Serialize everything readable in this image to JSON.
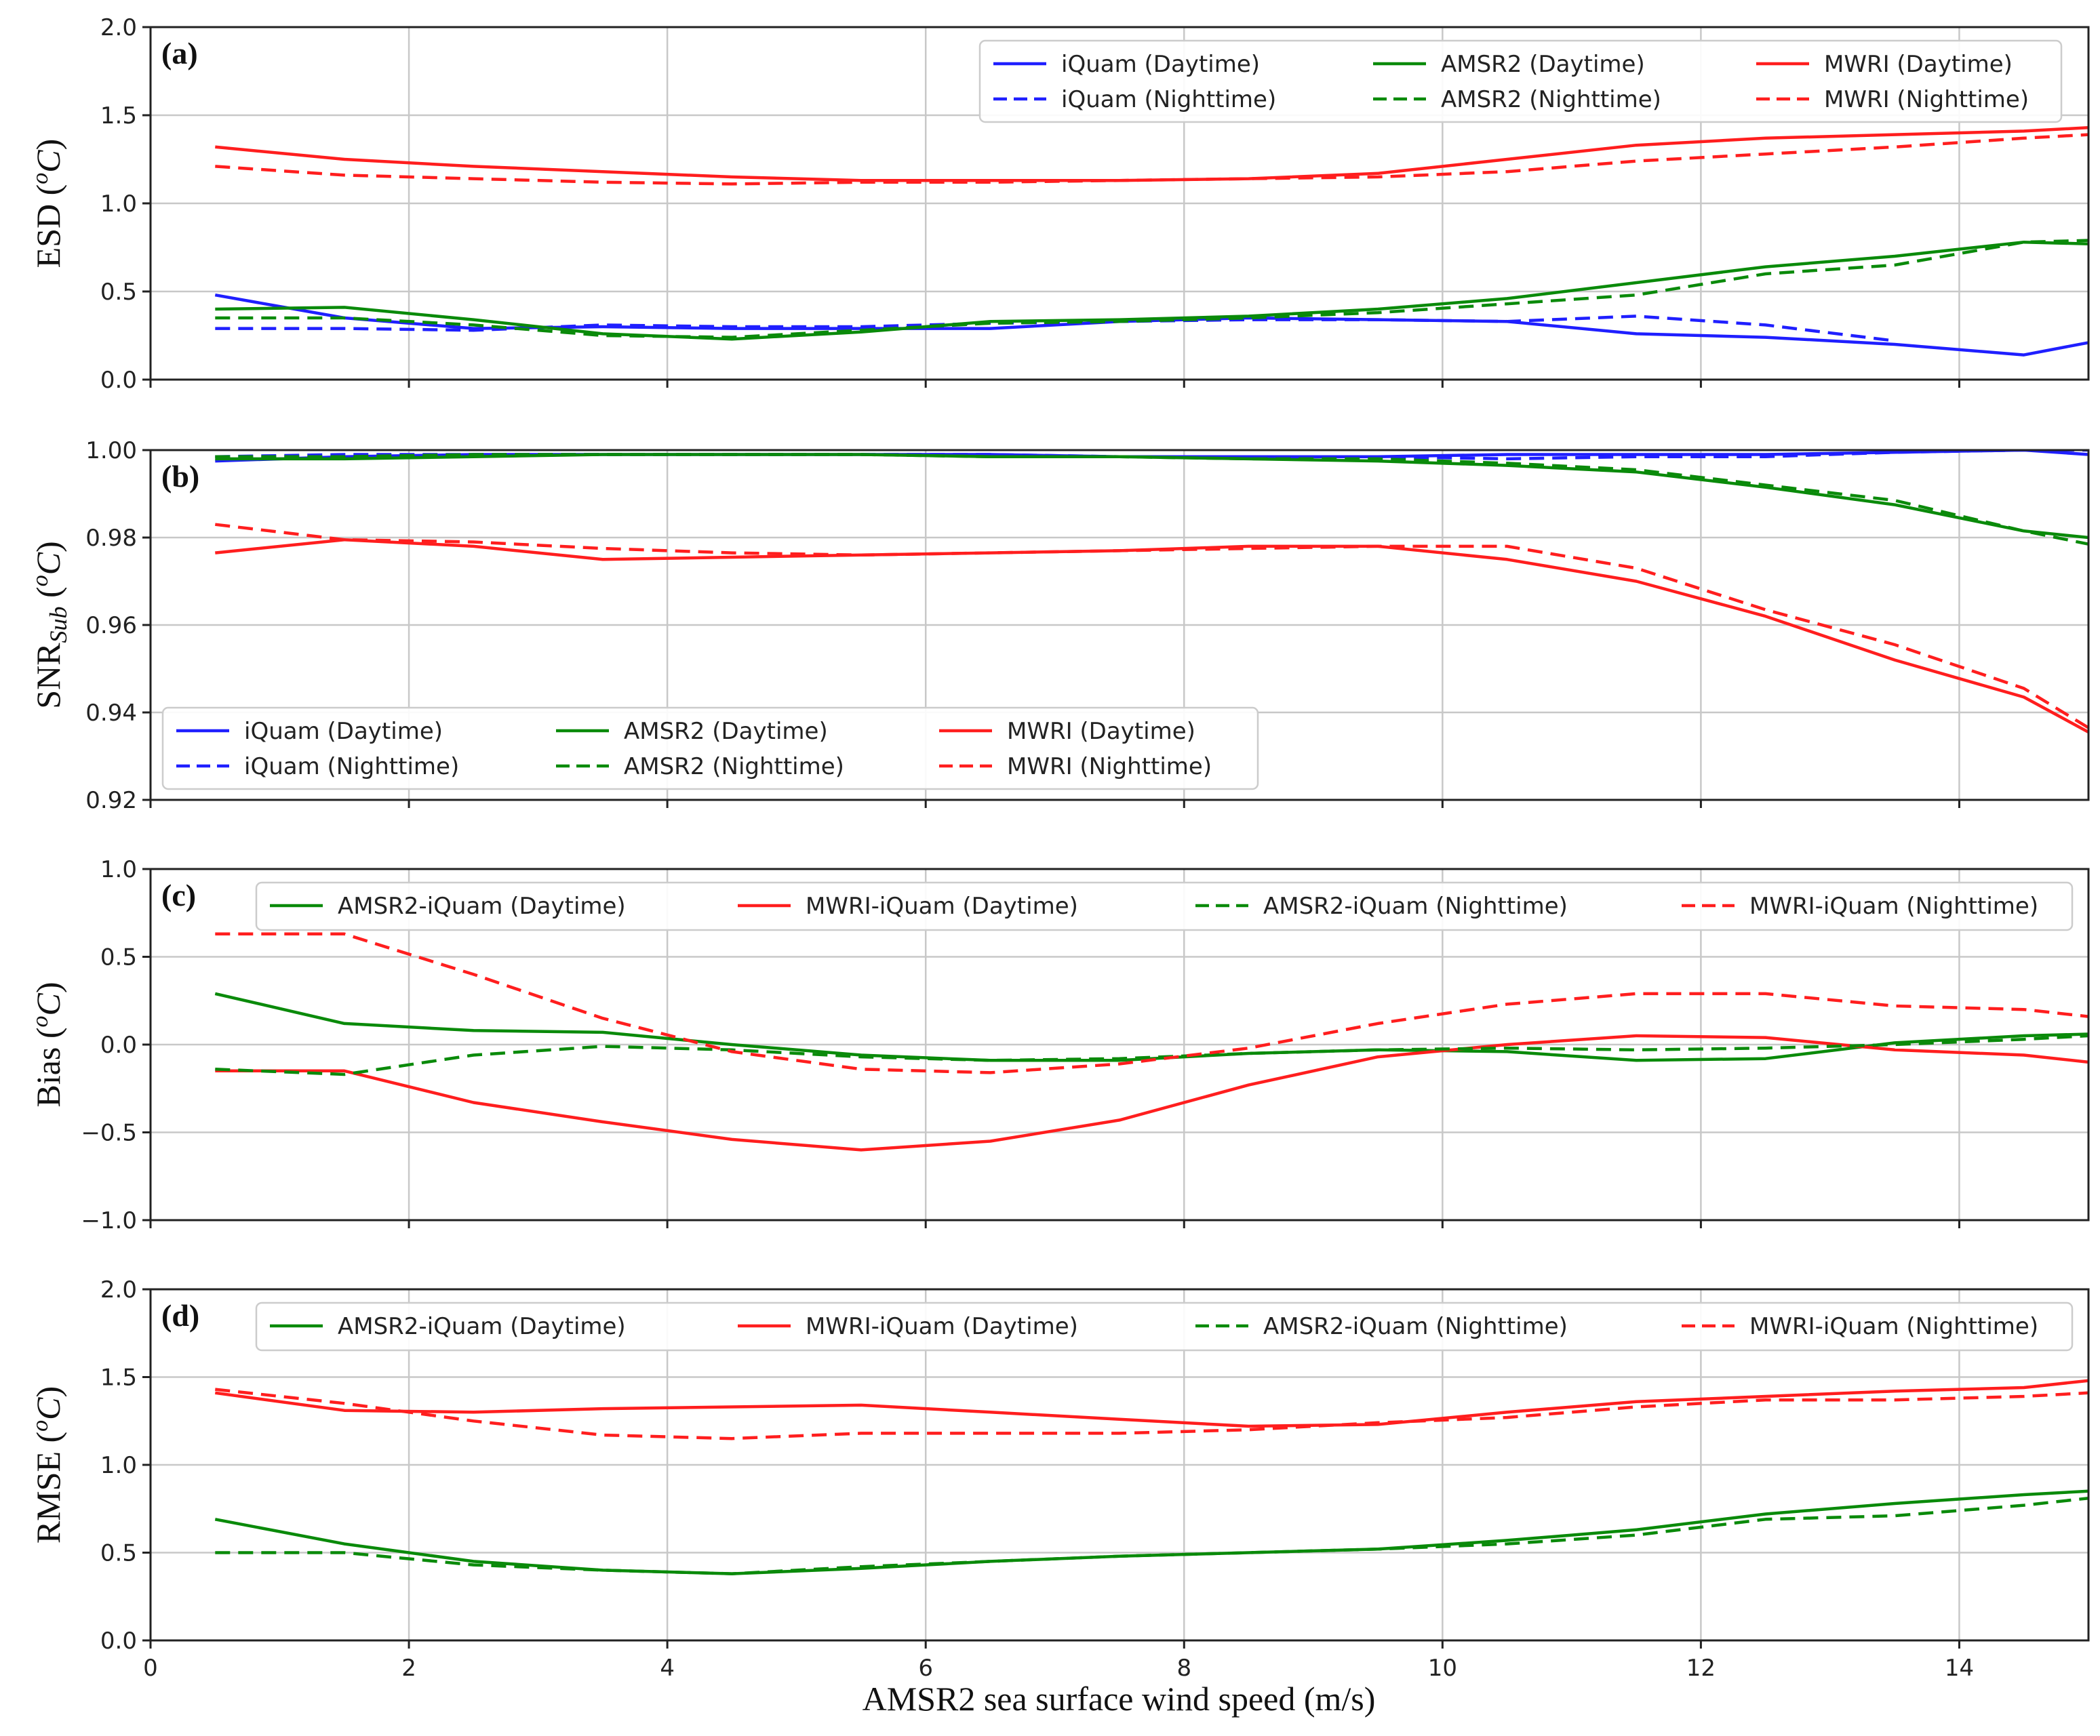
{
  "colors": {
    "iQuam": "#1f1fff",
    "AMSR2": "#0a8a0a",
    "MWRI": "#ff1e1e"
  },
  "chart_data": {
    "xlabel": "AMSR2 sea surface wind speed (m/s)",
    "xlim": [
      0,
      15
    ],
    "xticks": [
      0,
      2,
      4,
      6,
      8,
      10,
      12,
      14
    ],
    "x": [
      0.5,
      1.5,
      2.5,
      3.5,
      4.5,
      5.5,
      6.5,
      7.5,
      8.5,
      9.5,
      10.5,
      11.5,
      12.5,
      13.5,
      14.5,
      15.0
    ],
    "panels": [
      {
        "type": "line",
        "label": "(a)",
        "ylabel": "ESD",
        "ylim": [
          0,
          2.0
        ],
        "yticks": [
          "0.0",
          "0.5",
          "1.0",
          "1.5",
          "2.0"
        ],
        "legend_location": "top-right",
        "legend_columns": 3,
        "series": [
          {
            "name": "iQuam (Daytime)",
            "color_key": "iQuam",
            "style": "solid",
            "values": [
              0.48,
              0.35,
              0.29,
              0.3,
              0.29,
              0.29,
              0.29,
              0.33,
              0.35,
              0.34,
              0.33,
              0.26,
              0.24,
              0.2,
              0.14,
              0.21
            ]
          },
          {
            "name": "iQuam (Nighttime)",
            "color_key": "iQuam",
            "style": "dashed",
            "values": [
              0.29,
              0.29,
              0.28,
              0.31,
              0.3,
              0.3,
              0.32,
              0.33,
              0.34,
              0.34,
              0.33,
              0.36,
              0.31,
              0.22,
              null,
              null
            ]
          },
          {
            "name": "AMSR2 (Daytime)",
            "color_key": "AMSR2",
            "style": "solid",
            "values": [
              0.4,
              0.41,
              0.34,
              0.26,
              0.23,
              0.27,
              0.33,
              0.34,
              0.36,
              0.4,
              0.46,
              0.55,
              0.64,
              0.7,
              0.78,
              0.77
            ]
          },
          {
            "name": "AMSR2 (Nighttime)",
            "color_key": "AMSR2",
            "style": "dashed",
            "values": [
              0.35,
              0.35,
              0.31,
              0.25,
              0.24,
              0.28,
              0.32,
              0.33,
              0.35,
              0.38,
              0.43,
              0.48,
              0.6,
              0.65,
              0.78,
              0.79
            ]
          },
          {
            "name": "MWRI (Daytime)",
            "color_key": "MWRI",
            "style": "solid",
            "values": [
              1.32,
              1.25,
              1.21,
              1.18,
              1.15,
              1.13,
              1.13,
              1.13,
              1.14,
              1.17,
              1.25,
              1.33,
              1.37,
              1.39,
              1.41,
              1.43
            ]
          },
          {
            "name": "MWRI (Nighttime)",
            "color_key": "MWRI",
            "style": "dashed",
            "values": [
              1.21,
              1.16,
              1.14,
              1.12,
              1.11,
              1.12,
              1.12,
              1.13,
              1.14,
              1.15,
              1.18,
              1.24,
              1.28,
              1.32,
              1.37,
              1.39
            ]
          }
        ]
      },
      {
        "type": "line",
        "label": "(b)",
        "ylabel": "SNR",
        "ylabel_sub": "Sub",
        "ylim": [
          0.92,
          1.0
        ],
        "yticks": [
          "0.92",
          "0.94",
          "0.96",
          "0.98",
          "1.00"
        ],
        "legend_location": "bottom-left",
        "legend_columns": 3,
        "series": [
          {
            "name": "iQuam (Daytime)",
            "color_key": "iQuam",
            "style": "solid",
            "values": [
              0.9975,
              0.9985,
              0.999,
              0.999,
              0.999,
              0.999,
              0.999,
              0.9985,
              0.9985,
              0.9985,
              0.999,
              0.999,
              0.999,
              0.9995,
              1.0,
              0.999
            ]
          },
          {
            "name": "iQuam (Nighttime)",
            "color_key": "iQuam",
            "style": "dashed",
            "values": [
              0.9985,
              0.999,
              0.999,
              0.999,
              0.999,
              0.999,
              0.999,
              0.9985,
              0.9985,
              0.9985,
              0.998,
              0.9985,
              0.9985,
              0.9995,
              1.0,
              1.0
            ]
          },
          {
            "name": "AMSR2 (Daytime)",
            "color_key": "AMSR2",
            "style": "solid",
            "values": [
              0.998,
              0.998,
              0.9985,
              0.999,
              0.999,
              0.999,
              0.9985,
              0.9985,
              0.998,
              0.9975,
              0.9965,
              0.995,
              0.9915,
              0.9875,
              0.9815,
              0.98
            ]
          },
          {
            "name": "AMSR2 (Nighttime)",
            "color_key": "AMSR2",
            "style": "dashed",
            "values": [
              0.9985,
              0.9985,
              0.999,
              0.999,
              0.999,
              0.999,
              0.9985,
              0.9985,
              0.998,
              0.998,
              0.997,
              0.9955,
              0.992,
              0.9885,
              0.9815,
              0.9785
            ]
          },
          {
            "name": "MWRI (Daytime)",
            "color_key": "MWRI",
            "style": "solid",
            "values": [
              0.9765,
              0.9795,
              0.978,
              0.975,
              0.9755,
              0.976,
              0.9765,
              0.977,
              0.978,
              0.978,
              0.975,
              0.97,
              0.962,
              0.952,
              0.9435,
              0.9355
            ]
          },
          {
            "name": "MWRI (Nighttime)",
            "color_key": "MWRI",
            "style": "dashed",
            "values": [
              0.983,
              0.9795,
              0.979,
              0.9775,
              0.9765,
              0.976,
              0.9765,
              0.977,
              0.9775,
              0.978,
              0.978,
              0.973,
              0.9635,
              0.9555,
              0.9455,
              0.9365
            ]
          }
        ]
      },
      {
        "type": "line",
        "label": "(c)",
        "ylabel": "Bias",
        "ylim": [
          -1.0,
          1.0
        ],
        "yticks": [
          "−1.0",
          "−0.5",
          "0.0",
          "0.5",
          "1.0"
        ],
        "legend_location": "top-right",
        "legend_columns": 4,
        "series": [
          {
            "name": "AMSR2-iQuam (Daytime)",
            "color_key": "AMSR2",
            "style": "solid",
            "values": [
              0.29,
              0.12,
              0.08,
              0.07,
              0.0,
              -0.06,
              -0.09,
              -0.09,
              -0.05,
              -0.03,
              -0.04,
              -0.09,
              -0.08,
              0.01,
              0.05,
              0.06
            ]
          },
          {
            "name": "MWRI-iQuam (Daytime)",
            "color_key": "MWRI",
            "style": "solid",
            "values": [
              -0.15,
              -0.15,
              -0.33,
              -0.44,
              -0.54,
              -0.6,
              -0.55,
              -0.43,
              -0.23,
              -0.07,
              0.0,
              0.05,
              0.04,
              -0.03,
              -0.06,
              -0.1
            ]
          },
          {
            "name": "AMSR2-iQuam (Nighttime)",
            "color_key": "AMSR2",
            "style": "dashed",
            "values": [
              -0.14,
              -0.17,
              -0.06,
              -0.01,
              -0.03,
              -0.07,
              -0.09,
              -0.08,
              -0.05,
              -0.03,
              -0.02,
              -0.03,
              -0.02,
              0.0,
              0.03,
              0.05
            ]
          },
          {
            "name": "MWRI-iQuam (Nighttime)",
            "color_key": "MWRI",
            "style": "dashed",
            "values": [
              0.63,
              0.63,
              0.4,
              0.15,
              -0.04,
              -0.14,
              -0.16,
              -0.11,
              -0.02,
              0.12,
              0.23,
              0.29,
              0.29,
              0.22,
              0.2,
              0.16
            ]
          }
        ]
      },
      {
        "type": "line",
        "label": "(d)",
        "ylabel": "RMSE",
        "ylim": [
          0,
          2.0
        ],
        "yticks": [
          "0.0",
          "0.5",
          "1.0",
          "1.5",
          "2.0"
        ],
        "legend_location": "top-right",
        "legend_columns": 4,
        "series": [
          {
            "name": "AMSR2-iQuam (Daytime)",
            "color_key": "AMSR2",
            "style": "solid",
            "values": [
              0.69,
              0.55,
              0.45,
              0.4,
              0.38,
              0.41,
              0.45,
              0.48,
              0.5,
              0.52,
              0.57,
              0.63,
              0.72,
              0.78,
              0.83,
              0.85
            ]
          },
          {
            "name": "MWRI-iQuam (Daytime)",
            "color_key": "MWRI",
            "style": "solid",
            "values": [
              1.41,
              1.31,
              1.3,
              1.32,
              1.33,
              1.34,
              1.3,
              1.26,
              1.22,
              1.23,
              1.3,
              1.36,
              1.39,
              1.42,
              1.44,
              1.48
            ]
          },
          {
            "name": "AMSR2-iQuam (Nighttime)",
            "color_key": "AMSR2",
            "style": "dashed",
            "values": [
              0.5,
              0.5,
              0.43,
              0.4,
              0.38,
              0.42,
              0.45,
              0.48,
              0.5,
              0.52,
              0.55,
              0.6,
              0.69,
              0.71,
              0.77,
              0.81
            ]
          },
          {
            "name": "MWRI-iQuam (Nighttime)",
            "color_key": "MWRI",
            "style": "dashed",
            "values": [
              1.43,
              1.35,
              1.25,
              1.17,
              1.15,
              1.18,
              1.18,
              1.18,
              1.2,
              1.24,
              1.27,
              1.33,
              1.37,
              1.37,
              1.39,
              1.41
            ]
          }
        ]
      }
    ]
  }
}
